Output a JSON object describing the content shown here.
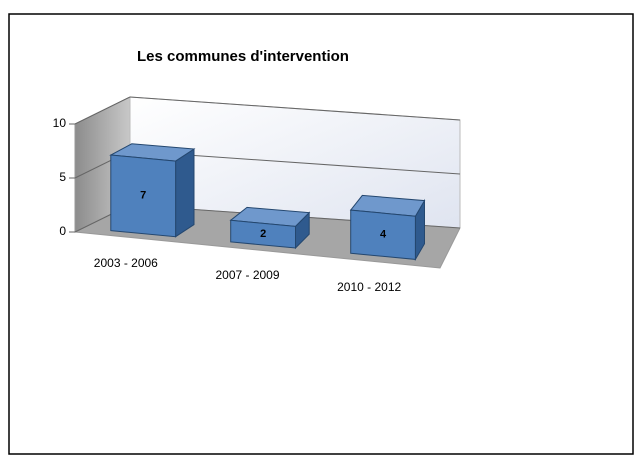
{
  "chart_data": {
    "type": "bar3d",
    "title": "Les communes d'intervention",
    "categories": [
      "2003 - 2006",
      "2007 - 2009",
      "2010 - 2012"
    ],
    "values": [
      7,
      2,
      4
    ],
    "color": "#4f81bd",
    "ylim": [
      0,
      10
    ],
    "yticks": [
      0,
      5,
      10
    ],
    "grid": true
  }
}
